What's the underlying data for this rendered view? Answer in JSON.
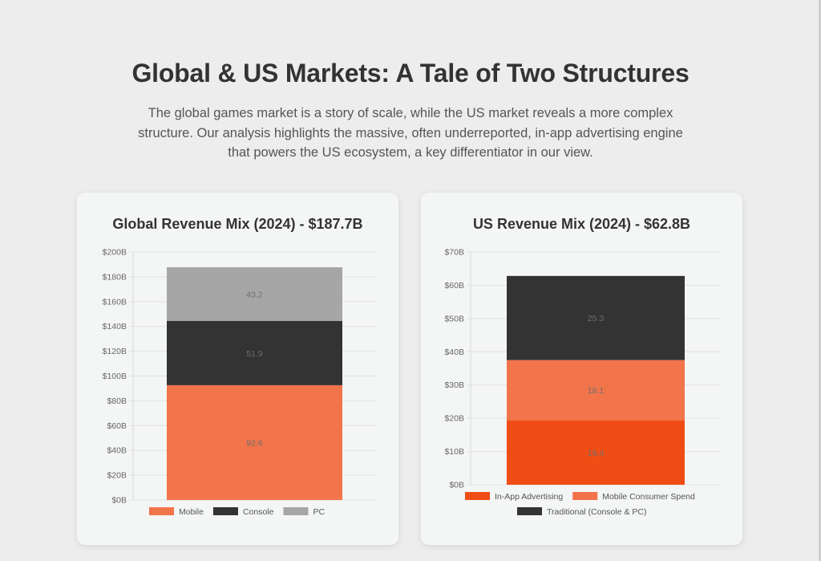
{
  "header": {
    "title": "Global & US Markets: A Tale of Two Structures",
    "subtitle": "The global games market is a story of scale, while the US market reveals a more complex structure. Our analysis highlights the massive, often underreported, in-app advertising engine that powers the US ecosystem, a key differentiator in our view."
  },
  "colors": {
    "mobile": "#f2744b",
    "console": "#333333",
    "pc": "#a6a6a6",
    "in_app_advertising": "#f04d16",
    "mobile_consumer_spend": "#f2744b",
    "traditional": "#333333"
  },
  "chart_data": [
    {
      "type": "bar",
      "stacked": true,
      "title": "Global Revenue Mix (2024) - $187.7B",
      "categories": [
        ""
      ],
      "series": [
        {
          "name": "Mobile",
          "values": [
            92.6
          ],
          "color": "#f2744b"
        },
        {
          "name": "Console",
          "values": [
            51.9
          ],
          "color": "#333333"
        },
        {
          "name": "PC",
          "values": [
            43.2
          ],
          "color": "#a6a6a6"
        }
      ],
      "ylim": [
        0,
        200
      ],
      "yticks": [
        0,
        20,
        40,
        60,
        80,
        100,
        120,
        140,
        160,
        180,
        200
      ],
      "ytick_labels": [
        "$0B",
        "$20B",
        "$40B",
        "$60B",
        "$80B",
        "$100B",
        "$120B",
        "$140B",
        "$160B",
        "$180B",
        "$200B"
      ],
      "legend": "bottom",
      "grid": true
    },
    {
      "type": "bar",
      "stacked": true,
      "title": "US Revenue Mix (2024) - $62.8B",
      "categories": [
        ""
      ],
      "series": [
        {
          "name": "In-App Advertising",
          "values": [
            19.4
          ],
          "color": "#f04d16"
        },
        {
          "name": "Mobile Consumer Spend",
          "values": [
            18.1
          ],
          "color": "#f2744b"
        },
        {
          "name": "Traditional (Console & PC)",
          "values": [
            25.3
          ],
          "color": "#333333"
        }
      ],
      "ylim": [
        0,
        70
      ],
      "yticks": [
        0,
        10,
        20,
        30,
        40,
        50,
        60,
        70
      ],
      "ytick_labels": [
        "$0B",
        "$10B",
        "$20B",
        "$30B",
        "$40B",
        "$50B",
        "$60B",
        "$70B"
      ],
      "legend": "bottom",
      "grid": true
    }
  ]
}
